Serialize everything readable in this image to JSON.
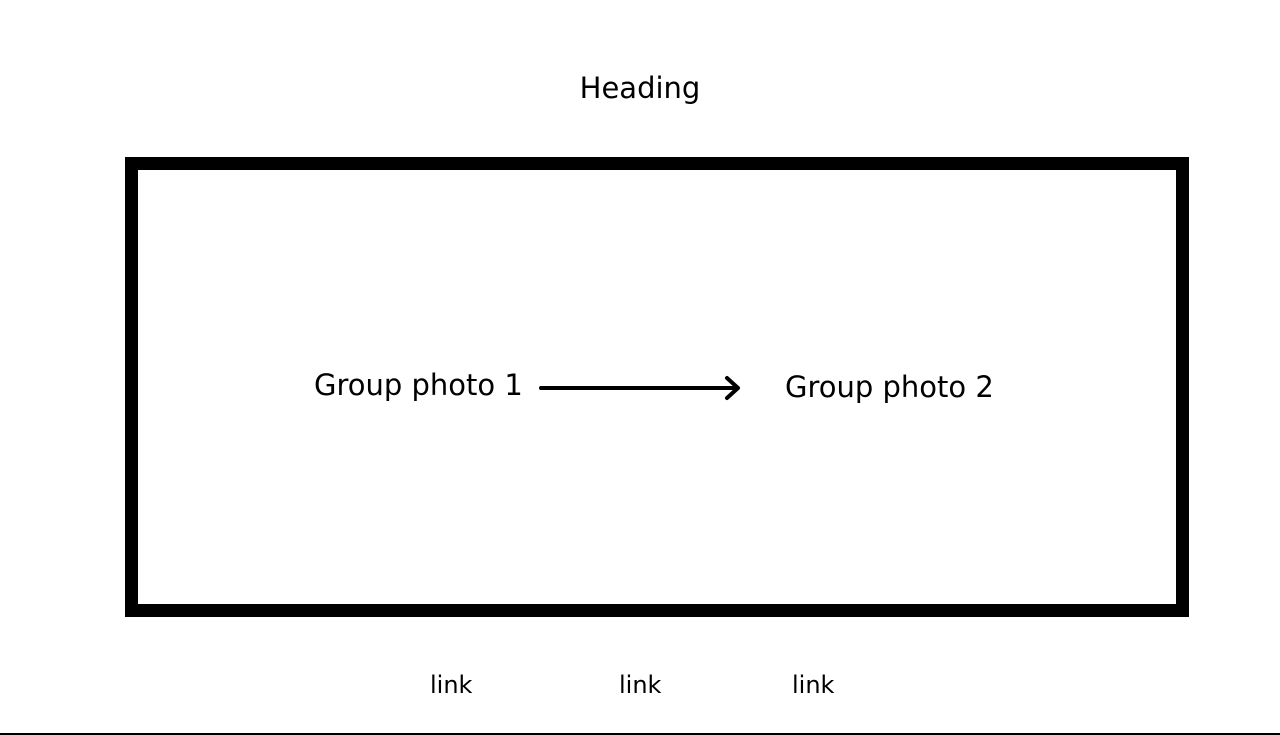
{
  "page": {
    "heading": "Heading"
  },
  "carousel": {
    "slides": [
      {
        "label": "Group photo 1"
      },
      {
        "label": "Group photo 2"
      }
    ],
    "arrow_icon": "arrow-right-icon"
  },
  "footer": {
    "links": [
      {
        "label": "link"
      },
      {
        "label": "link"
      },
      {
        "label": "link"
      }
    ]
  },
  "colors": {
    "text": "#000000",
    "frame_border": "#000000",
    "background": "#ffffff"
  }
}
